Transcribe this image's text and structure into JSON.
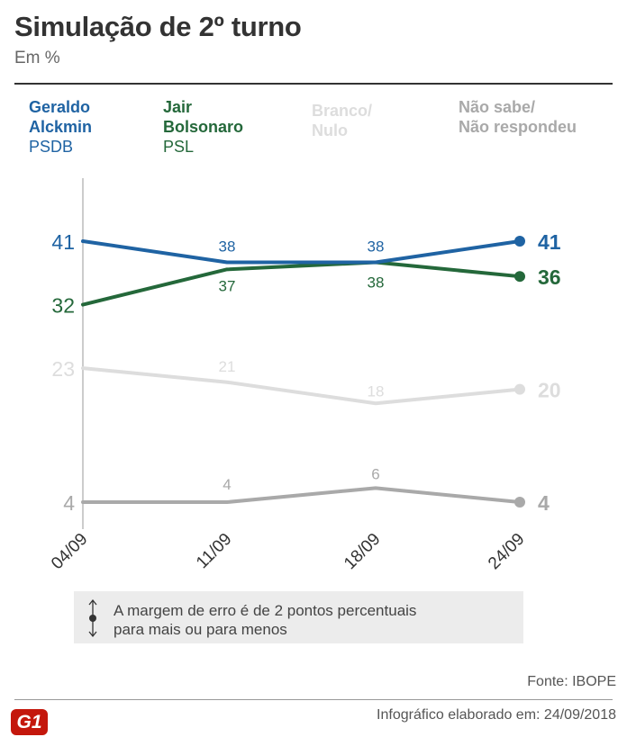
{
  "title": "Simulação de 2º turno",
  "subtitle": "Em %",
  "legend": [
    {
      "name_line1": "Geraldo",
      "name_line2": "Alckmin",
      "party": "PSDB",
      "color": "#1f63a3"
    },
    {
      "name_line1": "Jair",
      "name_line2": "Bolsonaro",
      "party": "PSL",
      "color": "#24683a"
    },
    {
      "name_line1": "Branco/",
      "name_line2": "Nulo",
      "party": "",
      "color": "#dddddd"
    },
    {
      "name_line1": "Não sabe/",
      "name_line2": "Não respondeu",
      "party": "",
      "color": "#a9a9a9"
    }
  ],
  "chart_data": {
    "type": "line",
    "categories": [
      "04/09",
      "11/09",
      "18/09",
      "24/09"
    ],
    "ylim": [
      4,
      41
    ],
    "series": [
      {
        "name": "Geraldo Alckmin",
        "values": [
          41,
          38,
          38,
          41
        ],
        "color": "#1f63a3"
      },
      {
        "name": "Jair Bolsonaro",
        "values": [
          32,
          37,
          38,
          36
        ],
        "color": "#24683a"
      },
      {
        "name": "Branco/Nulo",
        "values": [
          23,
          21,
          18,
          20
        ],
        "color": "#dddddd"
      },
      {
        "name": "Não sabe/Não respondeu",
        "values": [
          4,
          4,
          6,
          4
        ],
        "color": "#a9a9a9"
      }
    ]
  },
  "note": {
    "line1": "A margem de erro é de 2 pontos percentuais",
    "line2": "para mais ou para menos"
  },
  "source": "Fonte: IBOPE",
  "logo": "G1",
  "credit": "Infográfico elaborado em: 24/09/2018"
}
